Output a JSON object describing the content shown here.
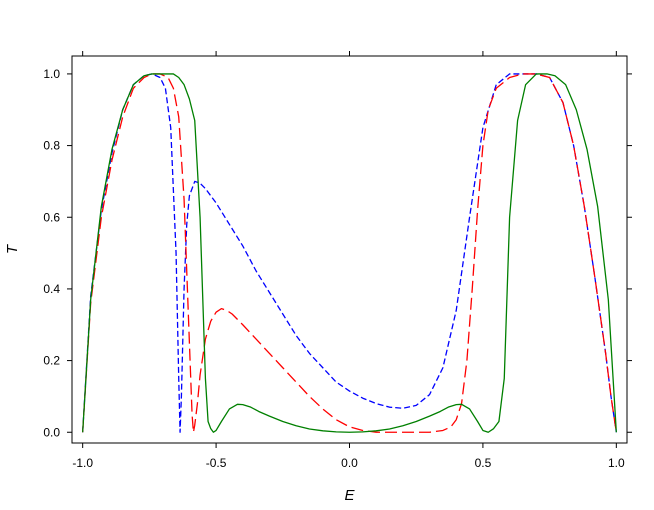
{
  "chart_data": {
    "type": "line",
    "title": "",
    "xlabel": "E",
    "ylabel": "T",
    "xlim": [
      -1.04,
      1.04
    ],
    "ylim": [
      -0.03,
      1.05
    ],
    "x_ticks": [
      -1.0,
      -0.5,
      0.0,
      0.5,
      1.0
    ],
    "x_tick_labels": [
      "-1.0",
      "-0.5",
      "0.0",
      "0.5",
      "1.0"
    ],
    "y_ticks": [
      0.0,
      0.2,
      0.4,
      0.6,
      0.8,
      1.0
    ],
    "y_tick_labels": [
      "0.0",
      "0.2",
      "0.4",
      "0.6",
      "0.8",
      "1.0"
    ],
    "grid": false,
    "legend": "none",
    "series": [
      {
        "color": "#0000ff",
        "dash": "short-dash",
        "x": [
          -1.0,
          -0.97,
          -0.93,
          -0.89,
          -0.85,
          -0.81,
          -0.77,
          -0.74,
          -0.71,
          -0.69,
          -0.67,
          -0.65,
          -0.64,
          -0.635,
          -0.63,
          -0.62,
          -0.61,
          -0.6,
          -0.58,
          -0.56,
          -0.54,
          -0.52,
          -0.5,
          -0.45,
          -0.4,
          -0.35,
          -0.3,
          -0.25,
          -0.2,
          -0.15,
          -0.1,
          -0.05,
          0.0,
          0.05,
          0.1,
          0.15,
          0.2,
          0.25,
          0.3,
          0.35,
          0.4,
          0.45,
          0.5,
          0.55,
          0.6,
          0.65,
          0.7,
          0.75,
          0.8,
          0.84,
          0.88,
          0.92,
          0.96,
          0.98,
          1.0
        ],
        "y": [
          0.0,
          0.38,
          0.62,
          0.78,
          0.9,
          0.97,
          0.995,
          1.0,
          0.99,
          0.96,
          0.85,
          0.5,
          0.15,
          0.0,
          0.1,
          0.4,
          0.58,
          0.66,
          0.7,
          0.695,
          0.68,
          0.66,
          0.64,
          0.58,
          0.52,
          0.45,
          0.39,
          0.33,
          0.27,
          0.22,
          0.18,
          0.14,
          0.115,
          0.095,
          0.08,
          0.07,
          0.067,
          0.075,
          0.105,
          0.18,
          0.34,
          0.6,
          0.85,
          0.97,
          1.0,
          1.0,
          1.0,
          0.99,
          0.92,
          0.8,
          0.63,
          0.43,
          0.22,
          0.1,
          0.0
        ]
      },
      {
        "color": "#ff0000",
        "dash": "long-dash",
        "x": [
          -1.0,
          -0.97,
          -0.93,
          -0.89,
          -0.85,
          -0.81,
          -0.77,
          -0.74,
          -0.71,
          -0.68,
          -0.66,
          -0.64,
          -0.62,
          -0.6,
          -0.59,
          -0.585,
          -0.58,
          -0.57,
          -0.56,
          -0.54,
          -0.52,
          -0.5,
          -0.48,
          -0.46,
          -0.44,
          -0.4,
          -0.35,
          -0.3,
          -0.25,
          -0.2,
          -0.15,
          -0.1,
          -0.05,
          0.0,
          0.05,
          0.1,
          0.15,
          0.2,
          0.25,
          0.3,
          0.35,
          0.38,
          0.4,
          0.42,
          0.44,
          0.46,
          0.48,
          0.5,
          0.52,
          0.55,
          0.6,
          0.65,
          0.7,
          0.75,
          0.8,
          0.84,
          0.88,
          0.92,
          0.96,
          0.98,
          1.0
        ],
        "y": [
          0.0,
          0.36,
          0.6,
          0.76,
          0.88,
          0.96,
          0.99,
          1.0,
          1.0,
          0.99,
          0.96,
          0.88,
          0.65,
          0.25,
          0.05,
          0.0,
          0.02,
          0.08,
          0.16,
          0.26,
          0.31,
          0.335,
          0.345,
          0.34,
          0.33,
          0.3,
          0.26,
          0.22,
          0.18,
          0.14,
          0.1,
          0.065,
          0.035,
          0.015,
          0.005,
          0.0,
          0.0,
          0.0,
          0.0,
          0.0,
          0.005,
          0.015,
          0.035,
          0.08,
          0.2,
          0.4,
          0.62,
          0.8,
          0.9,
          0.96,
          0.99,
          1.0,
          1.0,
          0.99,
          0.92,
          0.8,
          0.63,
          0.43,
          0.22,
          0.1,
          0.0
        ]
      },
      {
        "color": "#008000",
        "dash": "solid",
        "x": [
          -1.0,
          -0.97,
          -0.93,
          -0.89,
          -0.85,
          -0.81,
          -0.77,
          -0.74,
          -0.71,
          -0.68,
          -0.66,
          -0.64,
          -0.62,
          -0.6,
          -0.58,
          -0.56,
          -0.54,
          -0.53,
          -0.52,
          -0.51,
          -0.5,
          -0.48,
          -0.45,
          -0.42,
          -0.4,
          -0.37,
          -0.34,
          -0.3,
          -0.25,
          -0.2,
          -0.15,
          -0.1,
          -0.05,
          0.0,
          0.05,
          0.1,
          0.15,
          0.2,
          0.25,
          0.3,
          0.34,
          0.37,
          0.4,
          0.42,
          0.45,
          0.48,
          0.5,
          0.52,
          0.54,
          0.56,
          0.58,
          0.6,
          0.63,
          0.66,
          0.7,
          0.74,
          0.77,
          0.81,
          0.85,
          0.89,
          0.93,
          0.97,
          1.0
        ],
        "y": [
          0.0,
          0.37,
          0.63,
          0.79,
          0.9,
          0.97,
          0.995,
          1.0,
          1.0,
          1.0,
          1.0,
          0.99,
          0.97,
          0.93,
          0.87,
          0.6,
          0.15,
          0.03,
          0.01,
          0.0,
          0.005,
          0.03,
          0.065,
          0.078,
          0.077,
          0.07,
          0.058,
          0.045,
          0.03,
          0.018,
          0.009,
          0.004,
          0.001,
          0.0,
          0.001,
          0.004,
          0.009,
          0.018,
          0.03,
          0.045,
          0.058,
          0.07,
          0.077,
          0.078,
          0.065,
          0.03,
          0.005,
          0.0,
          0.01,
          0.03,
          0.15,
          0.6,
          0.87,
          0.97,
          1.0,
          1.0,
          0.995,
          0.97,
          0.9,
          0.79,
          0.63,
          0.37,
          0.0
        ]
      }
    ]
  }
}
